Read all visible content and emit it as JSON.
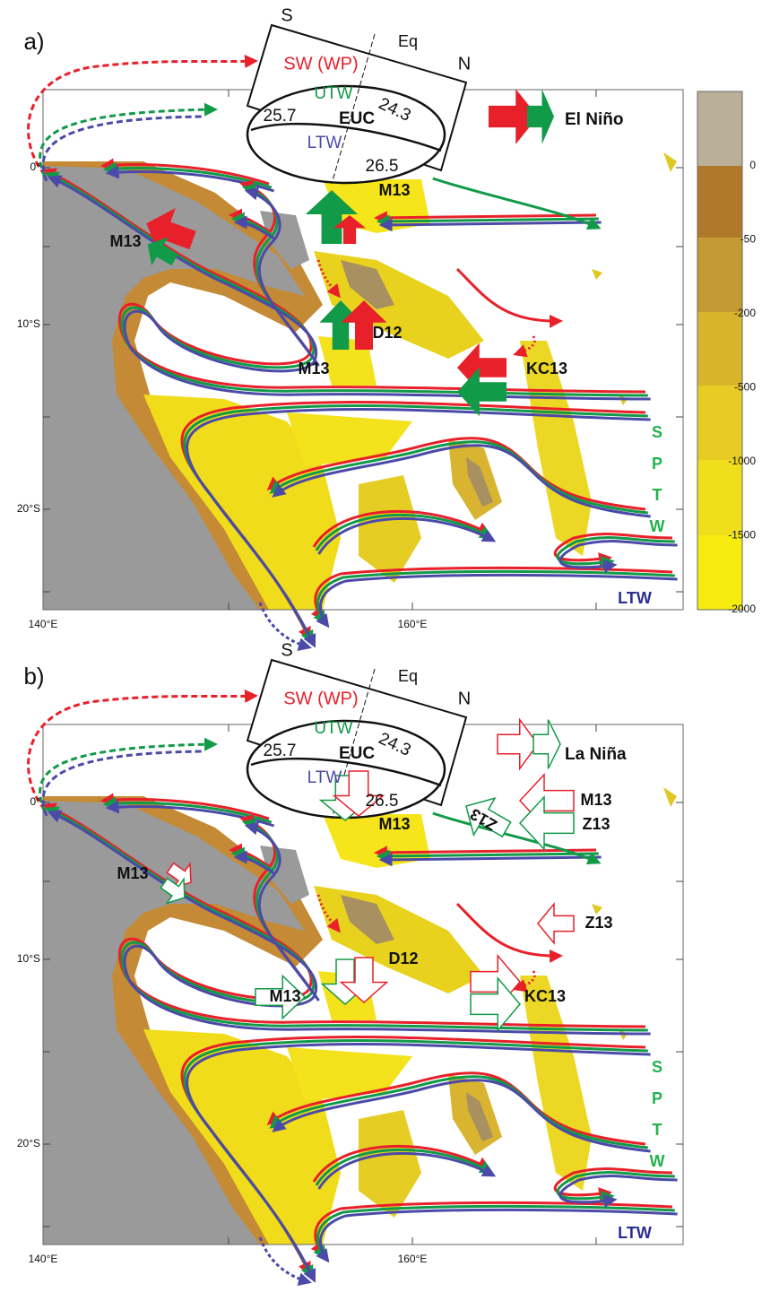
{
  "colorbar": {
    "ticks": [
      0,
      -50,
      -200,
      -500,
      -1000,
      -1500,
      -2000
    ]
  },
  "axes": {
    "lat": [
      "0°",
      "10°S",
      "20°S"
    ],
    "lon": [
      "140°E",
      "160°E"
    ]
  },
  "panels": [
    {
      "label": "a)",
      "section": {
        "south": "S",
        "equator": "Eq",
        "north": "N",
        "surface": "SW (WP)",
        "upper": "UTW",
        "isopycnal_top": "24.3",
        "isopycnal_left": "25.7",
        "core": "EUC",
        "lower": "LTW",
        "isopycnal_bottom": "26.5"
      },
      "legend": "El Niño",
      "stations": [
        "M13",
        "M13",
        "M13",
        "D12",
        "KC13"
      ],
      "sptw": [
        "S",
        "P",
        "T",
        "W"
      ],
      "ltw": "LTW"
    },
    {
      "label": "b)",
      "section": {
        "south": "S",
        "equator": "Eq",
        "north": "N",
        "surface": "SW (WP)",
        "upper": "UTW",
        "isopycnal_top": "24.3",
        "isopycnal_left": "25.7",
        "core": "EUC",
        "lower": "LTW",
        "isopycnal_bottom": "26.5"
      },
      "legend": "La Niña",
      "stations": [
        "M13",
        "M13",
        "M13",
        "M13",
        "Z13",
        "Z13",
        "Z13",
        "D12",
        "KC13"
      ],
      "sptw": [
        "S",
        "P",
        "T",
        "W"
      ],
      "ltw": "LTW"
    }
  ]
}
